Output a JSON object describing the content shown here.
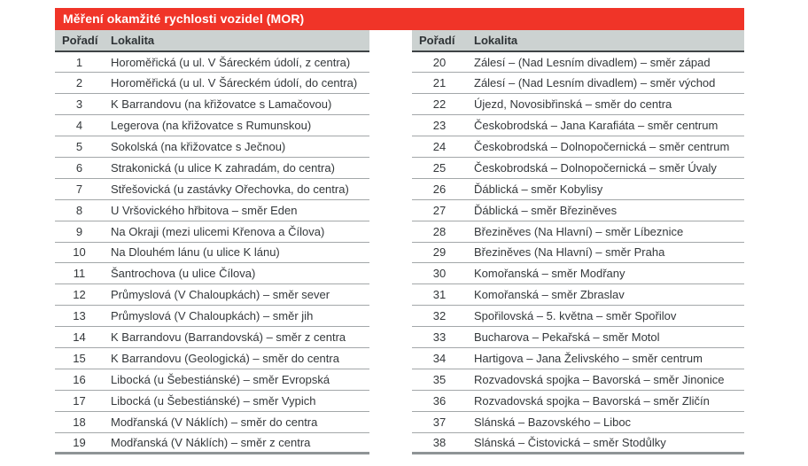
{
  "title": "Měření okamžité rychlosti vozidel (MOR)",
  "columns": {
    "poradi": "Pořadí",
    "lokalita": "Lokalita"
  },
  "colors": {
    "title_bar_red": "#f03428",
    "header_gray": "#ccd2d1",
    "text_dark": "#34383b"
  },
  "rows": {
    "left": [
      {
        "poradi": "1",
        "lokalita": "Horoměřická (u ul. V Šáreckém údolí, z centra)"
      },
      {
        "poradi": "2",
        "lokalita": "Horoměřická (u ul. V Šáreckém údolí, do centra)"
      },
      {
        "poradi": "3",
        "lokalita": "K Barrandovu (na křižovatce s Lamačovou)"
      },
      {
        "poradi": "4",
        "lokalita": "Legerova (na křižovatce s Rumunskou)"
      },
      {
        "poradi": "5",
        "lokalita": "Sokolská (na křižovatce s Ječnou)"
      },
      {
        "poradi": "6",
        "lokalita": "Strakonická (u ulice K zahradám, do centra)"
      },
      {
        "poradi": "7",
        "lokalita": "Střešovická (u zastávky Ořechovka, do centra)"
      },
      {
        "poradi": "8",
        "lokalita": "U Vršovického hřbitova – směr Eden"
      },
      {
        "poradi": "9",
        "lokalita": "Na Okraji (mezi ulicemi Křenova a Čílova)"
      },
      {
        "poradi": "10",
        "lokalita": "Na Dlouhém lánu (u ulice K lánu)"
      },
      {
        "poradi": "11",
        "lokalita": "Šantrochova (u ulice Čílova)"
      },
      {
        "poradi": "12",
        "lokalita": "Průmyslová (V Chaloupkách) – směr sever"
      },
      {
        "poradi": "13",
        "lokalita": "Průmyslová (V Chaloupkách) – směr jih"
      },
      {
        "poradi": "14",
        "lokalita": "K Barrandovu (Barrandovská) – směr z centra"
      },
      {
        "poradi": "15",
        "lokalita": "K Barrandovu (Geologická) – směr do centra"
      },
      {
        "poradi": "16",
        "lokalita": "Libocká (u Šebestiánské) – směr Evropská"
      },
      {
        "poradi": "17",
        "lokalita": "Libocká (u Šebestiánské) – směr Vypich"
      },
      {
        "poradi": "18",
        "lokalita": "Modřanská (V Náklích) – směr do centra"
      },
      {
        "poradi": "19",
        "lokalita": "Modřanská (V Náklích) – směr z centra"
      }
    ],
    "right": [
      {
        "poradi": "20",
        "lokalita": "Zálesí – (Nad Lesním divadlem) – směr západ"
      },
      {
        "poradi": "21",
        "lokalita": "Zálesí – (Nad Lesním divadlem) – směr východ"
      },
      {
        "poradi": "22",
        "lokalita": "Újezd, Novosibřinská – směr do centra"
      },
      {
        "poradi": "23",
        "lokalita": "Českobrodská – Jana Karafiáta – směr centrum"
      },
      {
        "poradi": "24",
        "lokalita": "Českobrodská – Dolnopočernická – směr centrum"
      },
      {
        "poradi": "25",
        "lokalita": "Českobrodská – Dolnopočernická – směr Úvaly"
      },
      {
        "poradi": "26",
        "lokalita": "Ďáblická – směr Kobylisy"
      },
      {
        "poradi": "27",
        "lokalita": "Ďáblická – směr Březiněves"
      },
      {
        "poradi": "28",
        "lokalita": "Březiněves (Na Hlavní) – směr Líbeznice"
      },
      {
        "poradi": "29",
        "lokalita": "Březiněves (Na Hlavní) – směr Praha"
      },
      {
        "poradi": "30",
        "lokalita": "Komořanská – směr Modřany"
      },
      {
        "poradi": "31",
        "lokalita": "Komořanská – směr Zbraslav"
      },
      {
        "poradi": "32",
        "lokalita": "Spořilovská – 5. května – směr Spořilov"
      },
      {
        "poradi": "33",
        "lokalita": "Bucharova – Pekařská – směr Motol"
      },
      {
        "poradi": "34",
        "lokalita": "Hartigova – Jana Želivského – směr centrum"
      },
      {
        "poradi": "35",
        "lokalita": "Rozvadovská spojka – Bavorská – směr Jinonice"
      },
      {
        "poradi": "36",
        "lokalita": "Rozvadovská spojka – Bavorská – směr Zličín"
      },
      {
        "poradi": "37",
        "lokalita": "Slánská – Bazovského – Liboc"
      },
      {
        "poradi": "38",
        "lokalita": "Slánská – Čistovická – směr Stodůlky"
      }
    ]
  }
}
